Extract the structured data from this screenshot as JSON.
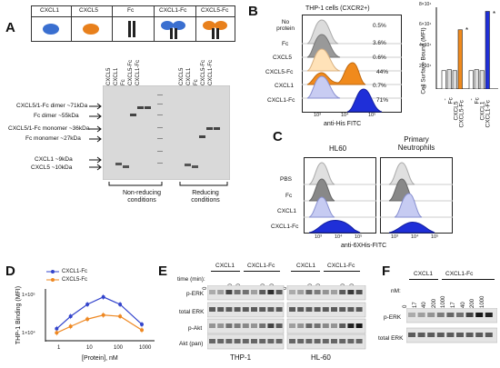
{
  "panels": {
    "A": {
      "letter": "A",
      "legend": [
        "CXCL1",
        "CXCL5",
        "Fc",
        "CXCL1-Fc",
        "CXCL5-Fc"
      ],
      "lane_labels_nonreducing": [
        "CXCL5",
        "CXCL1",
        "Fc",
        "CXCL5-Fc",
        "CXCL1-Fc"
      ],
      "lane_labels_reducing": [
        "CXCL5",
        "CXCL1",
        "Fc",
        "CXCL5-Fc",
        "CXCL1-Fc"
      ],
      "band_labels": [
        "CXCL5/1-Fc dimer ~71kDa",
        "Fc dimer ~55kDa",
        "CXCL5/1-Fc monomer ~36kDa",
        "Fc monomer ~27kDa",
        "CXCL1 ~9kDa",
        "CXCL5 ~10kDa"
      ],
      "condition_labels": [
        "Non-reducing conditions",
        "Reducing conditions"
      ]
    },
    "B": {
      "letter": "B",
      "title": "THP-1 cells (CXCR2+)",
      "rows": [
        {
          "label": "No protein",
          "pct": "0.5%"
        },
        {
          "label": "Fc",
          "pct": "3.6%"
        },
        {
          "label": "CXCL5",
          "pct": "0.6%"
        },
        {
          "label": "CXCL5-Fc",
          "pct": "44%"
        },
        {
          "label": "CXCL1",
          "pct": "0.7%"
        },
        {
          "label": "CXCL1-Fc",
          "pct": "71%"
        }
      ],
      "xaxis": "anti-His FITC",
      "ticks": [
        "10³",
        "10⁴",
        "10⁵"
      ],
      "bar_ylabel": "Cell Surface Bound (MFI)",
      "bar_yticks": [
        "0",
        "2×10⁴",
        "4×10⁴",
        "6×10⁴",
        "8×10⁴"
      ],
      "bar_xlabels_left": [
        "-",
        "Fc",
        "CXCL5",
        "CXCL5-Fc"
      ],
      "bar_xlabels_right": [
        "-",
        "Fc",
        "CXCL1",
        "CXCL1-Fc"
      ],
      "star": "*"
    },
    "C": {
      "letter": "C",
      "col_titles": [
        "HL60",
        "Primary Neutrophils"
      ],
      "rows": [
        "PBS",
        "Fc",
        "CXCL1",
        "CXCL1-Fc"
      ],
      "xaxis": "anti-6XHis-FITC",
      "ticks": [
        "10³",
        "10⁴",
        "10⁵"
      ]
    },
    "D": {
      "letter": "D",
      "series_names": [
        "CXCL1-Fc",
        "CXCL5-Fc"
      ],
      "ylabel": "THP-1 Binding (MFI)",
      "xlabel": "[Protein], nM",
      "yticks": [
        "1×10⁵",
        "1×10⁴"
      ],
      "xticks": [
        "1",
        "10",
        "100",
        "1000"
      ]
    },
    "E": {
      "letter": "E",
      "group_labels": [
        "CXCL1",
        "CXCL1-Fc",
        "CXCL1",
        "CXCL1-Fc"
      ],
      "time_label": "time (min):",
      "time_values": [
        "0",
        "5",
        "2",
        "10",
        "20",
        "5",
        "2",
        "10",
        "20"
      ],
      "blot_labels": [
        "p-ERK",
        "total ERK",
        "p-Akt",
        "Akt (pan)"
      ],
      "cell_lines": [
        "THP-1",
        "HL-60"
      ]
    },
    "F": {
      "letter": "F",
      "group_labels": [
        "CXCL1",
        "CXCL1-Fc"
      ],
      "nm_label": "nM:",
      "nm_values": [
        "0",
        "17",
        "40",
        "200",
        "1000",
        "17",
        "40",
        "200",
        "1000"
      ],
      "blot_labels": [
        "p-ERK",
        "total ERK"
      ]
    }
  },
  "chart_data": [
    {
      "type": "bar",
      "panel": "B",
      "categories": [
        "-",
        "Fc",
        "CXCL5",
        "CXCL5-Fc",
        "-",
        "Fc",
        "CXCL1",
        "CXCL1-Fc"
      ],
      "values": [
        18000,
        19000,
        18000,
        58000,
        18000,
        19000,
        18000,
        76000
      ],
      "ylim": [
        0,
        80000
      ],
      "ylabel": "Cell Surface Bound (MFI)"
    },
    {
      "type": "line",
      "panel": "D",
      "xlabel": "[Protein], nM",
      "ylabel": "THP-1 Binding (MFI)",
      "xscale": "log",
      "yscale": "log",
      "legend": "top",
      "series": [
        {
          "name": "CXCL1-Fc",
          "color": "#3344cc",
          "x": [
            1.5,
            4,
            13,
            40,
            130,
            600
          ],
          "y": [
            16000,
            30000,
            55000,
            80000,
            55000,
            20000
          ]
        },
        {
          "name": "CXCL5-Fc",
          "color": "#ee8822",
          "x": [
            1.5,
            4,
            13,
            40,
            130,
            600
          ],
          "y": [
            13000,
            18000,
            26000,
            32000,
            30000,
            15000
          ]
        }
      ]
    }
  ],
  "colors": {
    "cxcl1": "#3a6fd0",
    "cxcl5": "#e8801c",
    "fc": "#222222",
    "hist_gray": "#bbbbbb",
    "hist_blue": "#1f2fd8",
    "hist_orange": "#f08a1c"
  }
}
